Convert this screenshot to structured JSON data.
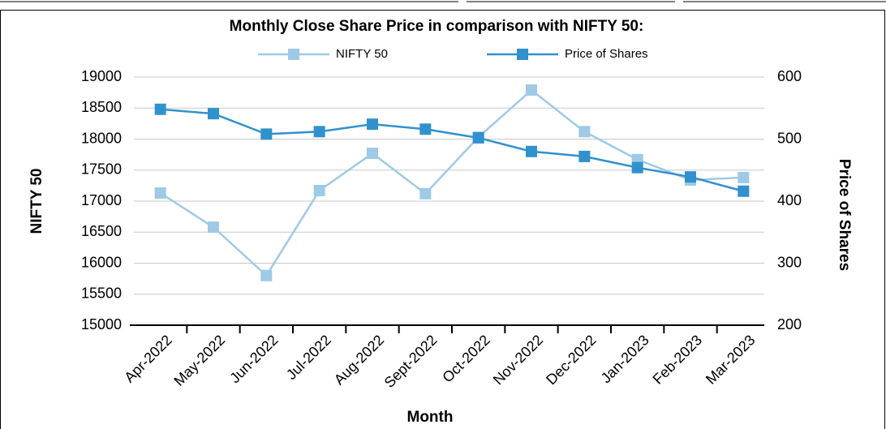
{
  "chart_data": {
    "type": "line",
    "title": "Monthly Close Share Price in comparison with NIFTY 50:",
    "x_label": "Month",
    "y_label": "NIFTY 50",
    "y2_label": "Price of Shares",
    "categories": [
      "Apr-2022",
      "May-2022",
      "Jun-2022",
      "Jul-2022",
      "Aug-2022",
      "Sept-2022",
      "Oct-2022",
      "Nov-2022",
      "Dec-2022",
      "Jan-2023",
      "Feb-2023",
      "Mar-2023"
    ],
    "series": [
      {
        "name": "NIFTY 50",
        "color": "#9ecae6",
        "values": [
          17130,
          16580,
          15800,
          17170,
          17770,
          17120,
          18030,
          18790,
          18120,
          17670,
          17340,
          17380
        ]
      },
      {
        "name": "Price of Shares",
        "color": "#3191cc",
        "axis": "y2",
        "values": [
          548,
          541,
          508,
          512,
          524,
          516,
          502,
          480,
          472,
          454,
          439,
          416
        ]
      }
    ],
    "ylim": [
      15000,
      19000
    ],
    "yticks": [
      15000,
      15500,
      16000,
      16500,
      17000,
      17500,
      18000,
      18500,
      19000
    ],
    "y2lim": [
      200,
      600
    ],
    "y2ticks": [
      200,
      300,
      400,
      500,
      600
    ],
    "grid": true,
    "legend": "top"
  }
}
